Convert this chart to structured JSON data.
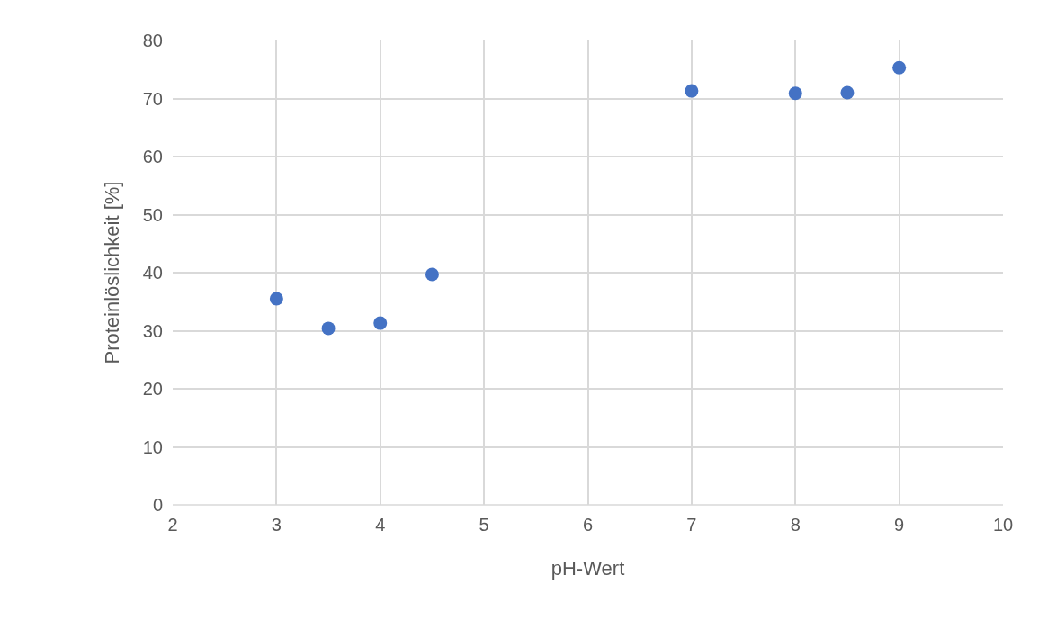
{
  "chart_data": {
    "type": "scatter",
    "xlabel": "pH-Wert",
    "ylabel": "Proteinlöslichkeit [%]",
    "x": [
      3,
      3.5,
      4,
      4.5,
      7,
      8,
      8.5,
      9
    ],
    "series": [
      {
        "color": "#4472c4",
        "values": [
          35.5,
          30.4,
          31.3,
          39.7,
          71.3,
          70.9,
          71.0,
          75.3
        ]
      }
    ],
    "xlim": [
      2,
      10
    ],
    "xticks": [
      2,
      3,
      4,
      5,
      6,
      7,
      8,
      9,
      10
    ],
    "ylim": [
      0,
      80
    ],
    "yticks": [
      0,
      10,
      20,
      30,
      40,
      50,
      60,
      70,
      80
    ],
    "grid": true,
    "marker": "circle"
  }
}
